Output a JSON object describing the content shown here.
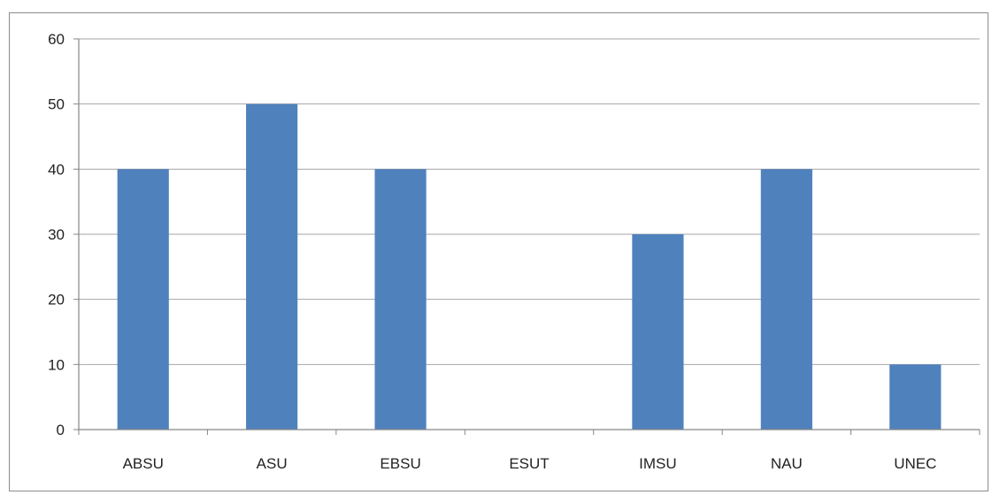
{
  "chart_data": {
    "type": "bar",
    "categories": [
      "ABSU",
      "ASU",
      "EBSU",
      "ESUT",
      "IMSU",
      "NAU",
      "UNEC"
    ],
    "values": [
      40,
      50,
      40,
      0,
      30,
      40,
      10
    ],
    "ylim": [
      0,
      60
    ],
    "yticks": [
      "0",
      "10",
      "20",
      "30",
      "40",
      "50",
      "60"
    ],
    "grid": true,
    "legend": "none",
    "bar_color": "#4f81bd"
  }
}
